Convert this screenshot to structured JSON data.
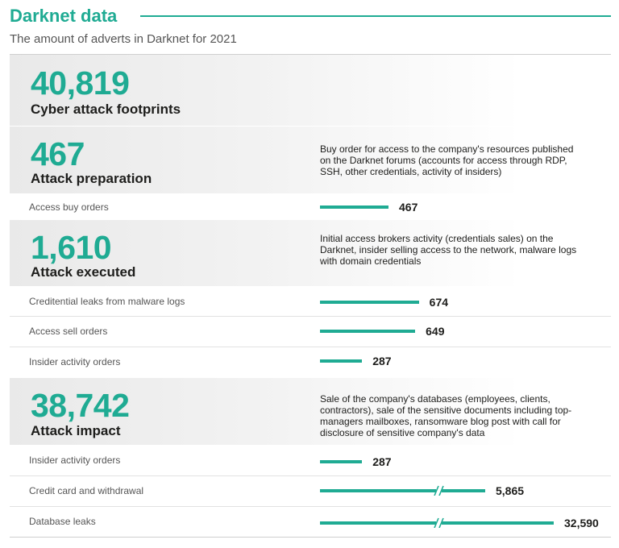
{
  "title": "Darknet data",
  "subtitle": "The amount of adverts in Darknet for 2021",
  "accent_color": "#1fab93",
  "chart_data": {
    "type": "bar",
    "orientation": "horizontal",
    "axis_break": true,
    "totals": [
      {
        "value": "40,819",
        "label": "Cyber attack footprints"
      },
      {
        "value": "467",
        "label": "Attack preparation",
        "description": "Buy order for access to the company's   resources published on the Darknet forums (accounts for access through RDP, SSH, other credentials, activity of insiders)"
      },
      {
        "value": "1,610",
        "label": "Attack executed",
        "description": "Initial access brokers activity (credentials sales) on the Darknet, insider selling access to the network, malware logs with domain credentials"
      },
      {
        "value": "38,742",
        "label": "Attack impact",
        "description": "Sale of the company's databases (employees, clients, contractors), sale of the sensitive documents including top-managers mailboxes, ransomware blog post with call for disclosure of sensitive company's data"
      }
    ],
    "categories": [
      "Access buy orders",
      "Creditential leaks from malware logs",
      "Access sell orders",
      "Insider activity orders",
      "Insider activity orders",
      "Credit card and withdrawal",
      "Database leaks"
    ],
    "values": [
      467,
      674,
      649,
      287,
      287,
      5865,
      32590
    ],
    "value_labels": [
      "467",
      "674",
      "649",
      "287",
      "287",
      "5,865",
      "32,590"
    ],
    "broken": [
      false,
      false,
      false,
      false,
      false,
      true,
      true
    ]
  }
}
